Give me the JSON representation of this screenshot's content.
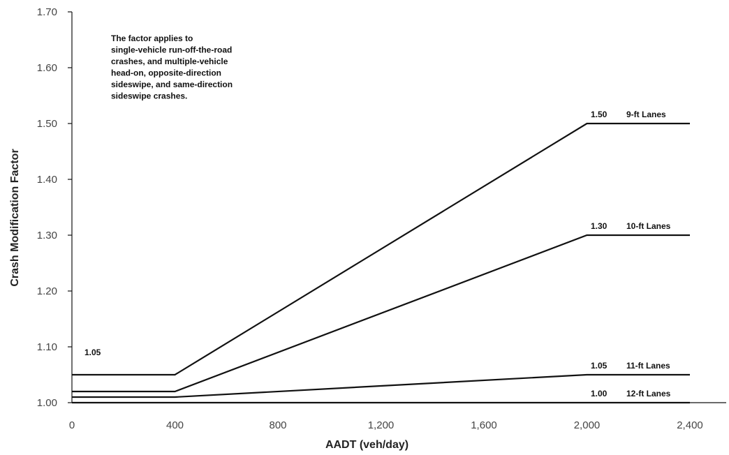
{
  "chart_data": {
    "type": "line",
    "xlabel": "AADT (veh/day)",
    "ylabel": "Crash Modification Factor",
    "xlim": [
      0,
      2400
    ],
    "ylim": [
      1.0,
      1.7
    ],
    "x_ticks": [
      {
        "value": 0,
        "label": "0"
      },
      {
        "value": 400,
        "label": "400"
      },
      {
        "value": 800,
        "label": "800"
      },
      {
        "value": 1200,
        "label": "1,200"
      },
      {
        "value": 1600,
        "label": "1,600"
      },
      {
        "value": 2000,
        "label": "2,000"
      },
      {
        "value": 2400,
        "label": "2,400"
      }
    ],
    "y_ticks": [
      {
        "value": 1.0,
        "label": "1.00"
      },
      {
        "value": 1.1,
        "label": "1.10"
      },
      {
        "value": 1.2,
        "label": "1.20"
      },
      {
        "value": 1.3,
        "label": "1.30"
      },
      {
        "value": 1.4,
        "label": "1.40"
      },
      {
        "value": 1.5,
        "label": "1.50"
      },
      {
        "value": 1.6,
        "label": "1.60"
      },
      {
        "value": 1.7,
        "label": "1.70"
      }
    ],
    "grid": false,
    "annotation": [
      "The factor applies to",
      "single-vehicle run-off-the-road",
      "crashes, and multiple-vehicle",
      "head-on, opposite-direction",
      "sideswipe, and same-direction",
      "sideswipe crashes."
    ],
    "start_label": "1.05",
    "series": [
      {
        "name": "9-ft Lanes",
        "value_label": "1.50",
        "x": [
          0,
          400,
          2000,
          2400
        ],
        "y": [
          1.05,
          1.05,
          1.5,
          1.5
        ]
      },
      {
        "name": "10-ft Lanes",
        "value_label": "1.30",
        "x": [
          0,
          400,
          2000,
          2400
        ],
        "y": [
          1.02,
          1.02,
          1.3,
          1.3
        ]
      },
      {
        "name": "11-ft Lanes",
        "value_label": "1.05",
        "x": [
          0,
          400,
          2000,
          2400
        ],
        "y": [
          1.01,
          1.01,
          1.05,
          1.05
        ]
      },
      {
        "name": "12-ft Lanes",
        "value_label": "1.00",
        "x": [
          0,
          400,
          2000,
          2400
        ],
        "y": [
          1.0,
          1.0,
          1.0,
          1.0
        ]
      }
    ]
  }
}
